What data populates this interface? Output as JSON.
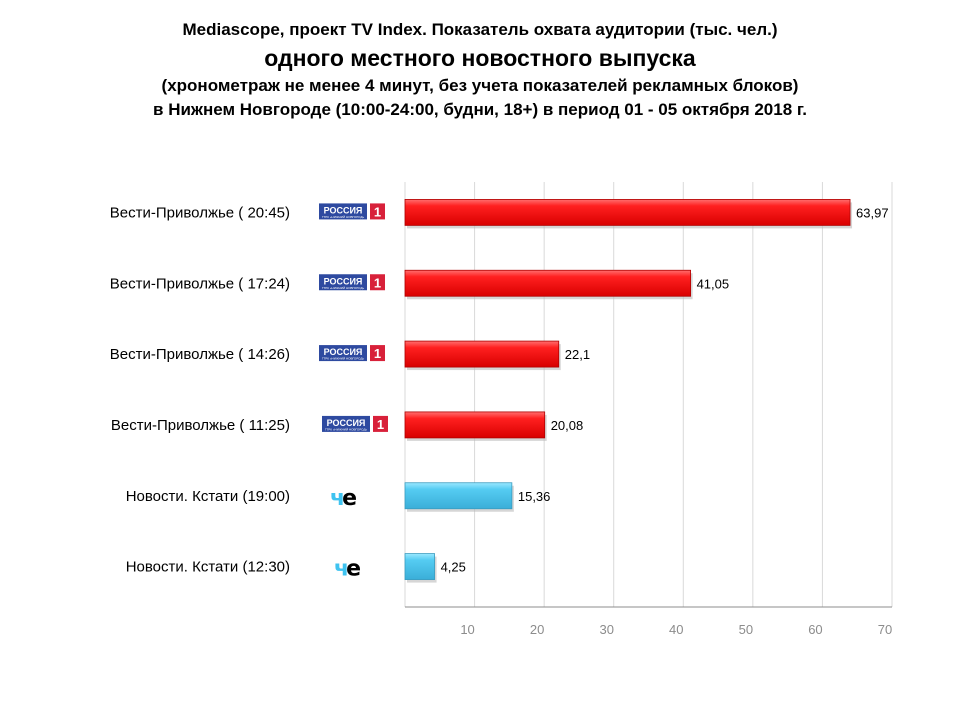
{
  "chart_data": {
    "type": "bar",
    "orientation": "horizontal",
    "title_lines": [
      "Mediascope, проект TV Index. Показатель охвата аудитории (тыс. чел.)",
      "одного местного новостного выпуска",
      "(хронометраж не менее 4 минут, без учета показателей рекламных блоков)",
      "в Нижнем Новгороде  (10:00-24:00, будни, 18+) в период 01 - 05 октября 2018 г."
    ],
    "categories": [
      "Вести-Приволжье ( 20:45)",
      "Вести-Приволжье ( 17:24)",
      "Вести-Приволжье ( 14:26)",
      "Вести-Приволжье ( 11:25)",
      "Новости. Кстати (19:00)",
      "Новости. Кстати (12:30)"
    ],
    "values": [
      63.97,
      41.05,
      22.1,
      20.08,
      15.36,
      4.25
    ],
    "value_labels": [
      "63,97",
      "41,05",
      "22,1",
      "20,08",
      "15,36",
      "4,25"
    ],
    "channels": [
      "russia1",
      "che",
      "che"
    ],
    "bar_channels": [
      "russia1",
      "russia1",
      "russia1",
      "russia1",
      "che",
      "che"
    ],
    "logo_text": {
      "russia1_name": "РОССИЯ",
      "russia1_num": "1",
      "russia1_sub": "ГТРК «НИЖНИЙ НОВГОРОД»",
      "che": "че"
    },
    "colors": {
      "russia1": "#ff1a1a",
      "che": "#55ccf2"
    },
    "xticks": [
      10,
      20,
      30,
      40,
      50,
      60,
      70
    ],
    "xlim": [
      0,
      70
    ],
    "grid": true
  }
}
